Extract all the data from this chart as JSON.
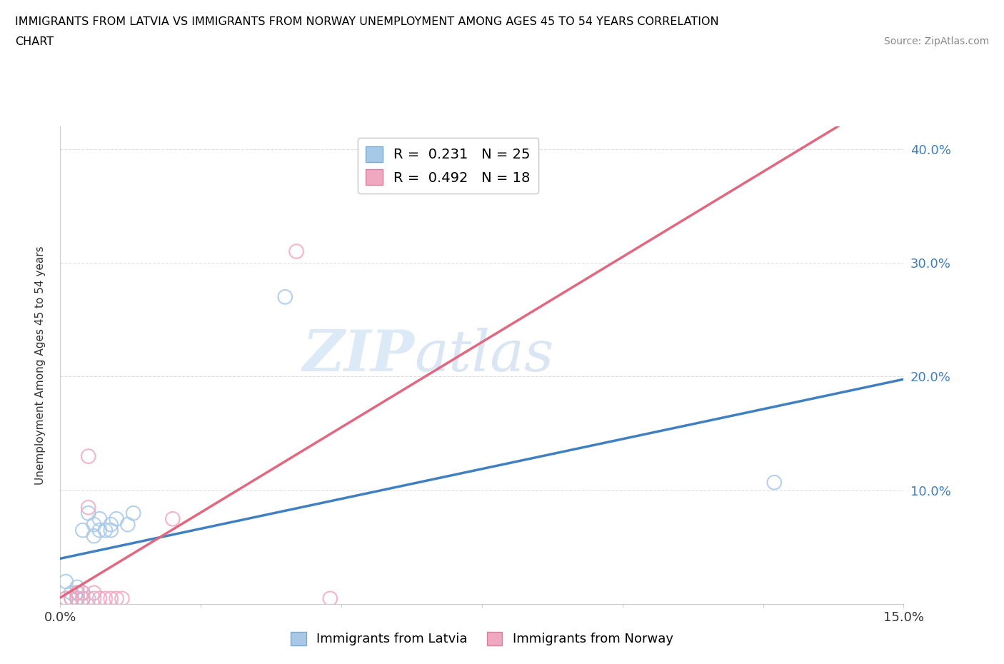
{
  "title_line1": "IMMIGRANTS FROM LATVIA VS IMMIGRANTS FROM NORWAY UNEMPLOYMENT AMONG AGES 45 TO 54 YEARS CORRELATION",
  "title_line2": "CHART",
  "source_text": "Source: ZipAtlas.com",
  "ylabel": "Unemployment Among Ages 45 to 54 years",
  "xlim": [
    0.0,
    0.15
  ],
  "ylim": [
    0.0,
    0.42
  ],
  "x_ticks": [
    0.0,
    0.025,
    0.05,
    0.075,
    0.1,
    0.125,
    0.15
  ],
  "x_tick_labels": [
    "0.0%",
    "",
    "",
    "",
    "",
    "",
    "15.0%"
  ],
  "y_ticks": [
    0.0,
    0.1,
    0.2,
    0.3,
    0.4
  ],
  "y_tick_labels": [
    "",
    "10.0%",
    "20.0%",
    "30.0%",
    "40.0%"
  ],
  "latvia_color": "#A8C8E8",
  "norway_color": "#F0A8C0",
  "latvia_line_color": "#4080C0",
  "norway_line_color": "#E06880",
  "norway_dash_color": "#E8A0B8",
  "watermark_zip": "ZIP",
  "watermark_atlas": "atlas",
  "legend_r_latvia": "R =  0.231",
  "legend_n_latvia": "N = 25",
  "legend_r_norway": "R =  0.492",
  "legend_n_norway": "N = 18",
  "latvia_x": [
    0.001,
    0.001,
    0.002,
    0.002,
    0.003,
    0.003,
    0.003,
    0.003,
    0.004,
    0.004,
    0.004,
    0.005,
    0.005,
    0.006,
    0.006,
    0.007,
    0.007,
    0.008,
    0.009,
    0.009,
    0.01,
    0.012,
    0.013,
    0.04,
    0.127
  ],
  "latvia_y": [
    0.005,
    0.02,
    0.005,
    0.01,
    0.005,
    0.005,
    0.01,
    0.015,
    0.005,
    0.01,
    0.065,
    0.005,
    0.08,
    0.06,
    0.07,
    0.065,
    0.075,
    0.065,
    0.065,
    0.07,
    0.075,
    0.07,
    0.08,
    0.27,
    0.107
  ],
  "norway_x": [
    0.001,
    0.002,
    0.003,
    0.003,
    0.004,
    0.004,
    0.005,
    0.005,
    0.006,
    0.006,
    0.007,
    0.008,
    0.009,
    0.01,
    0.011,
    0.02,
    0.042,
    0.048
  ],
  "norway_y": [
    0.005,
    0.005,
    0.005,
    0.01,
    0.005,
    0.01,
    0.085,
    0.13,
    0.005,
    0.01,
    0.005,
    0.005,
    0.005,
    0.005,
    0.005,
    0.075,
    0.31,
    0.005
  ],
  "background_color": "#FFFFFF",
  "grid_color": "#DDDDDD"
}
